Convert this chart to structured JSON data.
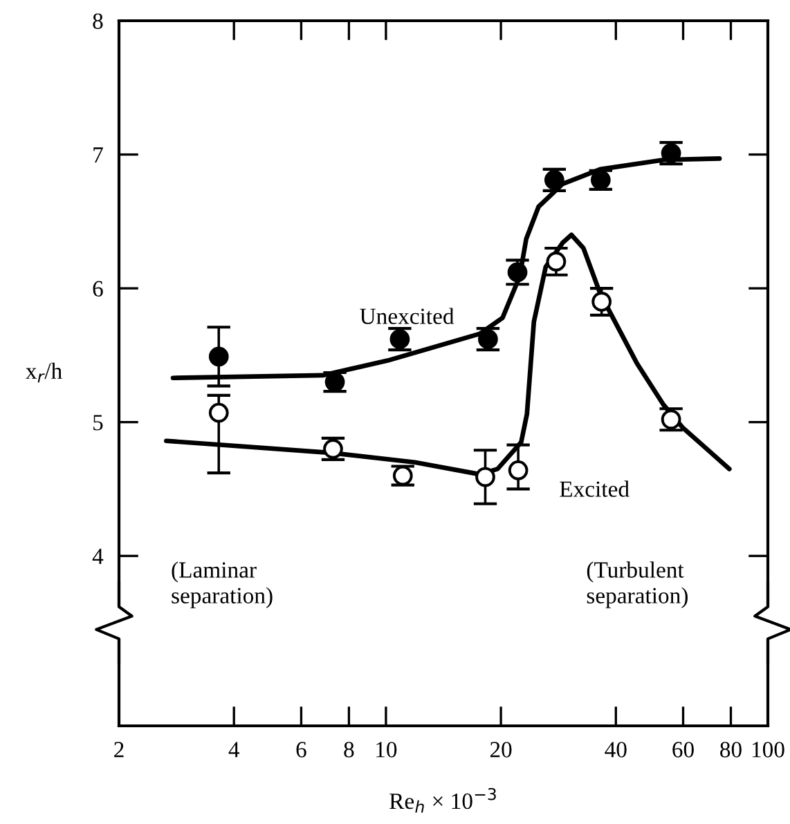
{
  "chart_data": {
    "type": "scatter",
    "xlabel": "Re$_{h}$ × 10$^{−3}$",
    "ylabel": "x$_{r}$/h",
    "log": "x",
    "xlim": [
      2,
      100
    ],
    "ylim": [
      2.73,
      8
    ],
    "xticks": [
      2,
      4,
      6,
      8,
      10,
      20,
      40,
      60,
      80,
      100
    ],
    "yticks": [
      4,
      5,
      6,
      7,
      8
    ],
    "grid": false,
    "legend": false,
    "annotations": [
      "(Laminar\nseparation)",
      "(Turbulent\nseparation)"
    ],
    "series": [
      {
        "type": "line",
        "name": "Unexcited",
        "color": "#000000",
        "marker": "none",
        "x": [
          2.77,
          6.83,
          10.1,
          17.6,
          20.2,
          22.4,
          23.3,
          25.1,
          29.0,
          36.4,
          53.3,
          74.7
        ],
        "values": [
          5.33,
          5.35,
          5.46,
          5.66,
          5.78,
          6.09,
          6.37,
          6.61,
          6.78,
          6.89,
          6.96,
          6.97
        ]
      },
      {
        "type": "line",
        "name": "Excited",
        "color": "#000000",
        "marker": "none",
        "x": [
          2.66,
          7.2,
          11.9,
          17.6,
          19.6,
          22.6,
          23.4,
          24.4,
          26.2,
          29.0,
          30.6,
          32.9,
          36.4,
          45.4,
          53.3,
          59.8,
          79.3
        ],
        "values": [
          4.86,
          4.77,
          4.7,
          4.61,
          4.65,
          4.85,
          5.06,
          5.75,
          6.16,
          6.34,
          6.4,
          6.3,
          5.96,
          5.44,
          5.13,
          4.96,
          4.65
        ]
      },
      {
        "color": "#000000",
        "marker": "circle",
        "x": [
          3.65,
          7.35,
          10.87,
          18.5,
          22.1,
          27.6,
          36.5,
          55.8
        ],
        "values": [
          5.49,
          5.3,
          5.62,
          5.62,
          6.12,
          6.81,
          6.81,
          7.01
        ],
        "errors": [
          0.22,
          0.07,
          0.08,
          0.08,
          0.09,
          0.08,
          0.07,
          0.08
        ]
      },
      {
        "color": "#ffffff",
        "marker": "circle",
        "x": [
          3.65,
          7.27,
          11.07,
          18.2,
          22.2,
          27.9,
          36.7,
          55.8
        ],
        "values": [
          5.07,
          4.8,
          4.6,
          4.59,
          4.64,
          6.2,
          5.9,
          5.02
        ],
        "errors": [
          [
            4.62,
            5.2
          ],
          0.08,
          0.07,
          0.2,
          [
            4.5,
            4.83
          ],
          0.1,
          0.1,
          0.08
        ]
      }
    ]
  }
}
